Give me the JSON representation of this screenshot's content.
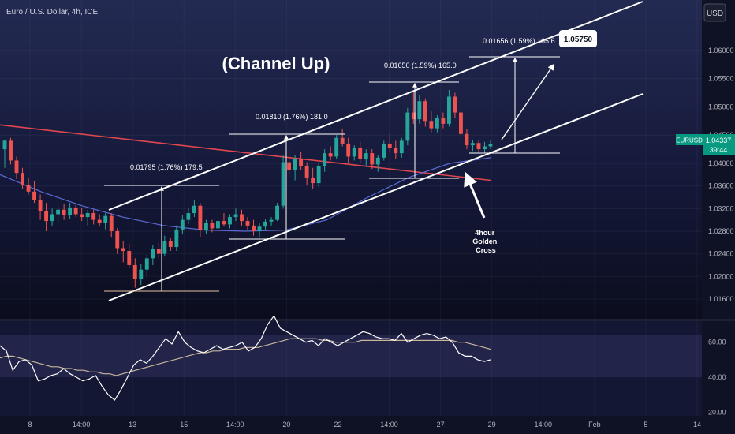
{
  "header": {
    "symbol_title": "Euro / U.S. Dollar, 4h, ICE",
    "currency": "USD"
  },
  "price_label": {
    "symbol": "EURUSD",
    "price": "1.04337",
    "countdown": "39:44"
  },
  "chart_data": [
    {
      "type": "candlestick",
      "title": "(Channel Up)",
      "y_ticks": [
        "1.06000",
        "1.05500",
        "1.05000",
        "1.04500",
        "1.04000",
        "1.03600",
        "1.03200",
        "1.02800",
        "1.02400",
        "1.02000",
        "1.01600"
      ],
      "ylim": [
        1.0125,
        1.0689
      ],
      "x_ticks": [
        "8",
        "14:00",
        "13",
        "15",
        "14:00",
        "20",
        "22",
        "14:00",
        "27",
        "29",
        "14:00",
        "Feb",
        "5",
        "14"
      ],
      "grid": true,
      "candles": [
        {
          "o": 1.0425,
          "h": 1.0442,
          "l": 1.0392,
          "c": 1.044
        },
        {
          "o": 1.044,
          "h": 1.0445,
          "l": 1.0398,
          "c": 1.0405
        },
        {
          "o": 1.0405,
          "h": 1.0412,
          "l": 1.0372,
          "c": 1.0383
        },
        {
          "o": 1.0383,
          "h": 1.0392,
          "l": 1.0355,
          "c": 1.0362
        },
        {
          "o": 1.0362,
          "h": 1.0375,
          "l": 1.0345,
          "c": 1.035
        },
        {
          "o": 1.035,
          "h": 1.0368,
          "l": 1.033,
          "c": 1.0335
        },
        {
          "o": 1.0335,
          "h": 1.0345,
          "l": 1.03,
          "c": 1.0315
        },
        {
          "o": 1.0315,
          "h": 1.033,
          "l": 1.028,
          "c": 1.0298
        },
        {
          "o": 1.0298,
          "h": 1.032,
          "l": 1.029,
          "c": 1.031
        },
        {
          "o": 1.031,
          "h": 1.0325,
          "l": 1.0295,
          "c": 1.0318
        },
        {
          "o": 1.0318,
          "h": 1.0328,
          "l": 1.03,
          "c": 1.0308
        },
        {
          "o": 1.0308,
          "h": 1.033,
          "l": 1.0302,
          "c": 1.0322
        },
        {
          "o": 1.0322,
          "h": 1.0328,
          "l": 1.0305,
          "c": 1.031
        },
        {
          "o": 1.031,
          "h": 1.0322,
          "l": 1.0298,
          "c": 1.0305
        },
        {
          "o": 1.0305,
          "h": 1.0318,
          "l": 1.029,
          "c": 1.0312
        },
        {
          "o": 1.0312,
          "h": 1.0318,
          "l": 1.0292,
          "c": 1.03
        },
        {
          "o": 1.03,
          "h": 1.031,
          "l": 1.0288,
          "c": 1.0295
        },
        {
          "o": 1.0295,
          "h": 1.0312,
          "l": 1.0283,
          "c": 1.0307
        },
        {
          "o": 1.0307,
          "h": 1.0312,
          "l": 1.027,
          "c": 1.028
        },
        {
          "o": 1.028,
          "h": 1.0285,
          "l": 1.024,
          "c": 1.025
        },
        {
          "o": 1.025,
          "h": 1.0262,
          "l": 1.0225,
          "c": 1.0245
        },
        {
          "o": 1.0245,
          "h": 1.0258,
          "l": 1.0215,
          "c": 1.022
        },
        {
          "o": 1.022,
          "h": 1.0232,
          "l": 1.018,
          "c": 1.0195
        },
        {
          "o": 1.0195,
          "h": 1.0222,
          "l": 1.0185,
          "c": 1.0212
        },
        {
          "o": 1.0212,
          "h": 1.0238,
          "l": 1.02,
          "c": 1.0232
        },
        {
          "o": 1.0232,
          "h": 1.0255,
          "l": 1.022,
          "c": 1.0248
        },
        {
          "o": 1.0248,
          "h": 1.026,
          "l": 1.0232,
          "c": 1.024
        },
        {
          "o": 1.024,
          "h": 1.0272,
          "l": 1.0235,
          "c": 1.0262
        },
        {
          "o": 1.0262,
          "h": 1.0268,
          "l": 1.0245,
          "c": 1.0252
        },
        {
          "o": 1.0252,
          "h": 1.029,
          "l": 1.0245,
          "c": 1.0283
        },
        {
          "o": 1.0283,
          "h": 1.0308,
          "l": 1.0275,
          "c": 1.03
        },
        {
          "o": 1.03,
          "h": 1.0322,
          "l": 1.0292,
          "c": 1.0312
        },
        {
          "o": 1.0312,
          "h": 1.0335,
          "l": 1.0305,
          "c": 1.0325
        },
        {
          "o": 1.0325,
          "h": 1.033,
          "l": 1.027,
          "c": 1.0282
        },
        {
          "o": 1.0282,
          "h": 1.03,
          "l": 1.0275,
          "c": 1.0295
        },
        {
          "o": 1.0295,
          "h": 1.03,
          "l": 1.0278,
          "c": 1.0285
        },
        {
          "o": 1.0285,
          "h": 1.0305,
          "l": 1.028,
          "c": 1.0298
        },
        {
          "o": 1.0298,
          "h": 1.0312,
          "l": 1.0288,
          "c": 1.0292
        },
        {
          "o": 1.0292,
          "h": 1.031,
          "l": 1.0285,
          "c": 1.0305
        },
        {
          "o": 1.0305,
          "h": 1.032,
          "l": 1.0298,
          "c": 1.031
        },
        {
          "o": 1.031,
          "h": 1.0318,
          "l": 1.029,
          "c": 1.0298
        },
        {
          "o": 1.0298,
          "h": 1.0305,
          "l": 1.0282,
          "c": 1.029
        },
        {
          "o": 1.029,
          "h": 1.03,
          "l": 1.0272,
          "c": 1.028
        },
        {
          "o": 1.028,
          "h": 1.0295,
          "l": 1.027,
          "c": 1.0288
        },
        {
          "o": 1.0288,
          "h": 1.0302,
          "l": 1.0282,
          "c": 1.0297
        },
        {
          "o": 1.0297,
          "h": 1.0305,
          "l": 1.029,
          "c": 1.03
        },
        {
          "o": 1.03,
          "h": 1.033,
          "l": 1.0298,
          "c": 1.0325
        },
        {
          "o": 1.0325,
          "h": 1.0415,
          "l": 1.032,
          "c": 1.0402
        },
        {
          "o": 1.0402,
          "h": 1.0428,
          "l": 1.0378,
          "c": 1.0388
        },
        {
          "o": 1.0388,
          "h": 1.0415,
          "l": 1.037,
          "c": 1.0408
        },
        {
          "o": 1.0408,
          "h": 1.042,
          "l": 1.0388,
          "c": 1.0395
        },
        {
          "o": 1.0395,
          "h": 1.0402,
          "l": 1.0362,
          "c": 1.0375
        },
        {
          "o": 1.0375,
          "h": 1.0392,
          "l": 1.0355,
          "c": 1.0365
        },
        {
          "o": 1.0365,
          "h": 1.04,
          "l": 1.0358,
          "c": 1.0395
        },
        {
          "o": 1.0395,
          "h": 1.0425,
          "l": 1.0385,
          "c": 1.0418
        },
        {
          "o": 1.0418,
          "h": 1.043,
          "l": 1.0405,
          "c": 1.0412
        },
        {
          "o": 1.0412,
          "h": 1.045,
          "l": 1.0408,
          "c": 1.0445
        },
        {
          "o": 1.0445,
          "h": 1.046,
          "l": 1.043,
          "c": 1.0435
        },
        {
          "o": 1.0435,
          "h": 1.0445,
          "l": 1.04,
          "c": 1.0412
        },
        {
          "o": 1.0412,
          "h": 1.0432,
          "l": 1.0405,
          "c": 1.0428
        },
        {
          "o": 1.0428,
          "h": 1.0438,
          "l": 1.04,
          "c": 1.0408
        },
        {
          "o": 1.0408,
          "h": 1.0425,
          "l": 1.0395,
          "c": 1.0418
        },
        {
          "o": 1.0418,
          "h": 1.0425,
          "l": 1.039,
          "c": 1.0398
        },
        {
          "o": 1.0398,
          "h": 1.0415,
          "l": 1.0385,
          "c": 1.041
        },
        {
          "o": 1.041,
          "h": 1.044,
          "l": 1.0405,
          "c": 1.0435
        },
        {
          "o": 1.0435,
          "h": 1.0452,
          "l": 1.042,
          "c": 1.0428
        },
        {
          "o": 1.0428,
          "h": 1.044,
          "l": 1.0408,
          "c": 1.0418
        },
        {
          "o": 1.0418,
          "h": 1.0445,
          "l": 1.041,
          "c": 1.044
        },
        {
          "o": 1.044,
          "h": 1.0498,
          "l": 1.0432,
          "c": 1.049
        },
        {
          "o": 1.049,
          "h": 1.0528,
          "l": 1.047,
          "c": 1.0478
        },
        {
          "o": 1.0478,
          "h": 1.052,
          "l": 1.047,
          "c": 1.051
        },
        {
          "o": 1.051,
          "h": 1.0515,
          "l": 1.0465,
          "c": 1.0475
        },
        {
          "o": 1.0475,
          "h": 1.0492,
          "l": 1.0455,
          "c": 1.0462
        },
        {
          "o": 1.0462,
          "h": 1.0485,
          "l": 1.0455,
          "c": 1.048
        },
        {
          "o": 1.048,
          "h": 1.049,
          "l": 1.0462,
          "c": 1.047
        },
        {
          "o": 1.047,
          "h": 1.053,
          "l": 1.0465,
          "c": 1.0518
        },
        {
          "o": 1.0518,
          "h": 1.0525,
          "l": 1.048,
          "c": 1.049
        },
        {
          "o": 1.049,
          "h": 1.0498,
          "l": 1.044,
          "c": 1.0452
        },
        {
          "o": 1.0452,
          "h": 1.046,
          "l": 1.0425,
          "c": 1.0432
        },
        {
          "o": 1.0432,
          "h": 1.0442,
          "l": 1.0422,
          "c": 1.0436
        },
        {
          "o": 1.0436,
          "h": 1.044,
          "l": 1.042,
          "c": 1.0425
        },
        {
          "o": 1.0425,
          "h": 1.0438,
          "l": 1.0418,
          "c": 1.043
        },
        {
          "o": 1.043,
          "h": 1.044,
          "l": 1.0425,
          "c": 1.0434
        }
      ],
      "ma_slow": {
        "color": "#e0464e",
        "values": [
          1.0468,
          1.0454,
          1.044,
          1.0426,
          1.0412,
          1.0398,
          1.0384,
          1.037
        ]
      },
      "ma_fast": {
        "color": "#5b6bd6",
        "values": [
          1.038,
          1.035,
          1.0325,
          1.0305,
          1.029,
          1.0282,
          1.028,
          1.0282,
          1.03,
          1.034,
          1.0375,
          1.04,
          1.041
        ]
      },
      "annotations": [
        {
          "text": "0.01795 (1.76%) 179.5"
        },
        {
          "text": "0.01810 (1.76%) 181.0"
        },
        {
          "text": "0.01650 (1.59%) 165.0"
        },
        {
          "text": "0.01656 (1.59%) 165.6"
        }
      ],
      "target_label": "1.05750",
      "callout_lines": [
        "4hour",
        "Golden",
        "Cross"
      ]
    },
    {
      "type": "line",
      "y_ticks": [
        "60.00",
        "40.00",
        "20.00"
      ],
      "ylim": [
        18,
        72
      ],
      "band": [
        40,
        64
      ],
      "series": [
        {
          "color": "#ffffff",
          "values": [
            58,
            55,
            44,
            49,
            50,
            47,
            38,
            39,
            41,
            42,
            45,
            42,
            40,
            38,
            39,
            41,
            35,
            30,
            27,
            33,
            40,
            47,
            50,
            48,
            52,
            57,
            62,
            59,
            66,
            60,
            57,
            55,
            54,
            56,
            58,
            56,
            57,
            58,
            60,
            55,
            57,
            62,
            70,
            75,
            68,
            66,
            64,
            62,
            60,
            61,
            58,
            62,
            60,
            58,
            60,
            62,
            64,
            66,
            65,
            63,
            62,
            62,
            61,
            65,
            60,
            62,
            64,
            65,
            64,
            62,
            63,
            60,
            54,
            52,
            52,
            50,
            49,
            50
          ]
        },
        {
          "color": "#c8b59a",
          "values": [
            51,
            52,
            52,
            51,
            50,
            49,
            48,
            47,
            46,
            46,
            45,
            45,
            44,
            44,
            43,
            43,
            42,
            42,
            41,
            42,
            43,
            44,
            45,
            46,
            47,
            48,
            49,
            50,
            51,
            52,
            53,
            54,
            54,
            55,
            55,
            56,
            56,
            56,
            57,
            57,
            57,
            58,
            59,
            60,
            61,
            62,
            62,
            62,
            62,
            62,
            61,
            61,
            60,
            60,
            60,
            60,
            61,
            61,
            61,
            61,
            61,
            61,
            61,
            61,
            61,
            61,
            61,
            61,
            61,
            61,
            61,
            60,
            60,
            59,
            58,
            57,
            56
          ]
        }
      ]
    }
  ]
}
